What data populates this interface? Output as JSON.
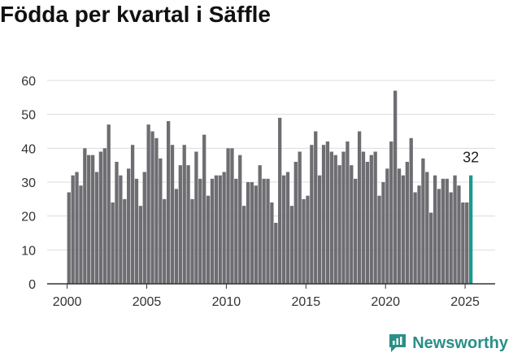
{
  "title": "Födda per kvartal i Säffle",
  "brand": {
    "name": "Newsworthy",
    "icon": "newsworthy-logo-icon"
  },
  "colors": {
    "bar": "#6d6d72",
    "highlight": "#1a9a8e",
    "grid": "#dcdcdc",
    "axis": "#333333",
    "brand": "#2a8f87"
  },
  "chart_data": {
    "type": "bar",
    "title": "Födda per kvartal i Säffle",
    "xlabel": "",
    "ylabel": "",
    "ylim": [
      0,
      60
    ],
    "yticks": [
      0,
      10,
      20,
      30,
      40,
      50,
      60
    ],
    "xticks": [
      {
        "label": "2000",
        "year": 2000
      },
      {
        "label": "2005",
        "year": 2005
      },
      {
        "label": "2010",
        "year": 2010
      },
      {
        "label": "2015",
        "year": 2015
      },
      {
        "label": "2020",
        "year": 2020
      },
      {
        "label": "2025",
        "year": 2025
      }
    ],
    "start": {
      "year": 2000,
      "quarter": 1
    },
    "grid": true,
    "highlight_last": true,
    "last_value_label": "32",
    "values": [
      27,
      32,
      33,
      29,
      40,
      38,
      38,
      33,
      39,
      40,
      47,
      24,
      36,
      32,
      25,
      34,
      41,
      31,
      23,
      33,
      47,
      45,
      43,
      37,
      25,
      48,
      41,
      28,
      35,
      41,
      35,
      25,
      39,
      31,
      44,
      26,
      31,
      32,
      32,
      33,
      40,
      40,
      31,
      38,
      23,
      30,
      30,
      29,
      35,
      31,
      31,
      24,
      18,
      49,
      32,
      33,
      23,
      36,
      39,
      25,
      26,
      41,
      45,
      32,
      41,
      42,
      39,
      38,
      35,
      39,
      42,
      35,
      31,
      45,
      39,
      36,
      38,
      39,
      26,
      30,
      34,
      42,
      57,
      34,
      32,
      36,
      43,
      27,
      29,
      37,
      33,
      21,
      32,
      28,
      31,
      31,
      27,
      32,
      29,
      24,
      24,
      32
    ]
  }
}
